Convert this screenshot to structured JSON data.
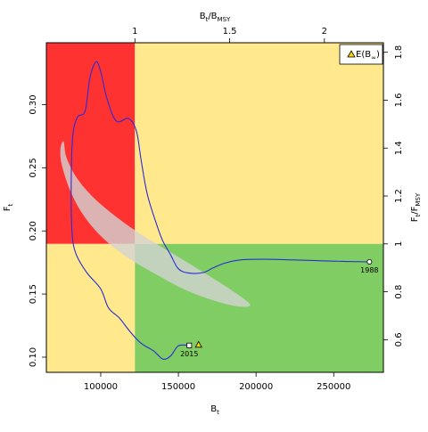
{
  "chart_data": {
    "type": "line",
    "xlabel": "B",
    "xlabel_sub": "t",
    "ylabel": "F",
    "ylabel_sub": "t",
    "top_label": {
      "main": "B",
      "sub1": "t",
      "sep": "/B",
      "sub2": "MSY"
    },
    "right_label": {
      "main": "F",
      "sub1": "t",
      "sep": "/F",
      "sub2": "MSY"
    },
    "xlim": [
      65000,
      282000
    ],
    "ylim": [
      0.088,
      0.349
    ],
    "x_ticks": [
      100000,
      150000,
      200000,
      250000
    ],
    "x_tick_labels": [
      "100000",
      "150000",
      "200000",
      "250000"
    ],
    "y_ticks": [
      0.1,
      0.15,
      0.2,
      0.25,
      0.3
    ],
    "y_tick_labels": [
      "0.10",
      "0.15",
      "0.20",
      "0.25",
      "0.30"
    ],
    "bmsy": 122000,
    "fmsy": 0.1897,
    "top_ticks": [
      1,
      1.5,
      2
    ],
    "top_tick_labels": [
      "1",
      "1.5",
      "2"
    ],
    "right_ticks": [
      0.6,
      0.8,
      1.0,
      1.2,
      1.4,
      1.6,
      1.8
    ],
    "right_tick_labels": [
      "0.6",
      "0.8",
      "1",
      "1.2",
      "1.4",
      "1.6",
      "1.8"
    ],
    "quadrant_colors": {
      "top_left": "#ff3232",
      "top_right": "#ffe98c",
      "bottom_left": "#ffe98c",
      "bottom_right": "#80cd64"
    },
    "trajectory_color": "#2b2bd9",
    "ellipse": {
      "color": "#d3d3d3",
      "opacity": 0.8
    },
    "ellipse_boundary": [
      [
        76000,
        0.271
      ],
      [
        78000,
        0.258
      ],
      [
        84000,
        0.243
      ],
      [
        94000,
        0.228
      ],
      [
        108000,
        0.213
      ],
      [
        125000,
        0.198
      ],
      [
        145000,
        0.183
      ],
      [
        165000,
        0.168
      ],
      [
        183000,
        0.154
      ],
      [
        196000,
        0.142
      ],
      [
        190000,
        0.14
      ],
      [
        175000,
        0.144
      ],
      [
        155000,
        0.153
      ],
      [
        135000,
        0.166
      ],
      [
        116000,
        0.18
      ],
      [
        100000,
        0.196
      ],
      [
        88000,
        0.214
      ],
      [
        80000,
        0.233
      ],
      [
        75000,
        0.252
      ],
      [
        74000,
        0.264
      ]
    ],
    "trajectory": [
      [
        273000,
        0.1755
      ],
      [
        250000,
        0.176
      ],
      [
        225000,
        0.177
      ],
      [
        205000,
        0.1775
      ],
      [
        190000,
        0.177
      ],
      [
        180000,
        0.1745
      ],
      [
        172000,
        0.1705
      ],
      [
        166000,
        0.167
      ],
      [
        157000,
        0.1666
      ],
      [
        150000,
        0.17
      ],
      [
        145000,
        0.181
      ],
      [
        140000,
        0.192
      ],
      [
        136000,
        0.205
      ],
      [
        130000,
        0.229
      ],
      [
        126000,
        0.256
      ],
      [
        123000,
        0.279
      ],
      [
        118000,
        0.289
      ],
      [
        110000,
        0.287
      ],
      [
        104000,
        0.305
      ],
      [
        100000,
        0.326
      ],
      [
        97000,
        0.334
      ],
      [
        93000,
        0.321
      ],
      [
        90000,
        0.295
      ],
      [
        85000,
        0.29
      ],
      [
        82000,
        0.275
      ],
      [
        81000,
        0.24
      ],
      [
        81500,
        0.2
      ],
      [
        84000,
        0.182
      ],
      [
        91000,
        0.167
      ],
      [
        100000,
        0.154
      ],
      [
        105000,
        0.139
      ],
      [
        112000,
        0.131
      ],
      [
        119000,
        0.12
      ],
      [
        126000,
        0.111
      ],
      [
        134000,
        0.105
      ],
      [
        140000,
        0.0985
      ],
      [
        145000,
        0.101
      ],
      [
        150000,
        0.109
      ],
      [
        157000,
        0.1093
      ]
    ],
    "start_point": {
      "x": 273000,
      "y": 0.1755,
      "label": "1988"
    },
    "end_point": {
      "x": 157000,
      "y": 0.1093,
      "label": "2015"
    },
    "expected_point": {
      "x": 163000,
      "y": 0.11
    },
    "legend": {
      "position": "top-right",
      "label_main": "E(B",
      "label_sub": "∞",
      "label_end": ")",
      "marker_color": "#f5d400"
    }
  }
}
